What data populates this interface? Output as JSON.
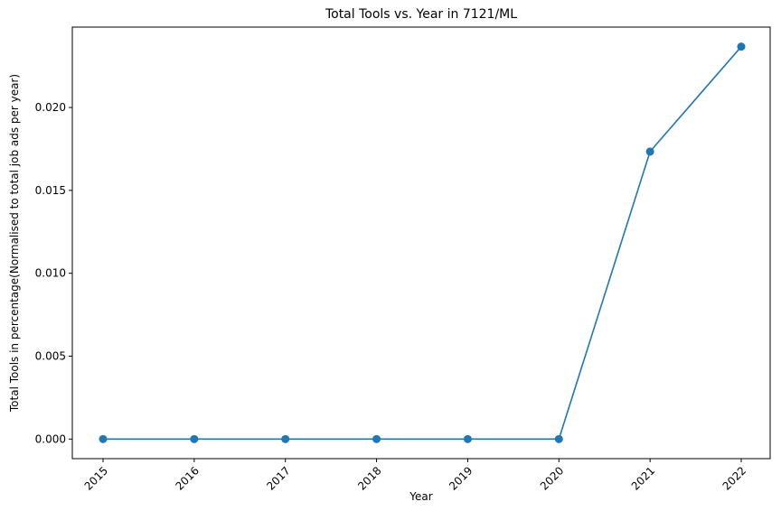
{
  "chart_data": {
    "type": "line",
    "title": "Total Tools vs. Year in 7121/ML",
    "xlabel": "Year",
    "ylabel": "Total Tools in percentage(Normalised to total job ads per year)",
    "x": [
      "2015",
      "2016",
      "2017",
      "2018",
      "2019",
      "2020",
      "2021",
      "2022"
    ],
    "series": [
      {
        "values": [
          0.0,
          0.0,
          0.0,
          0.0,
          0.0,
          0.0,
          0.01734,
          0.02367
        ]
      }
    ],
    "ylim": [
      -0.00118,
      0.02485
    ],
    "yticks": [
      "0.000",
      "0.005",
      "0.010",
      "0.015",
      "0.020"
    ],
    "xtick_rotation": 45,
    "grid": false,
    "marker": "circle",
    "line_color": "#1f77b4"
  }
}
